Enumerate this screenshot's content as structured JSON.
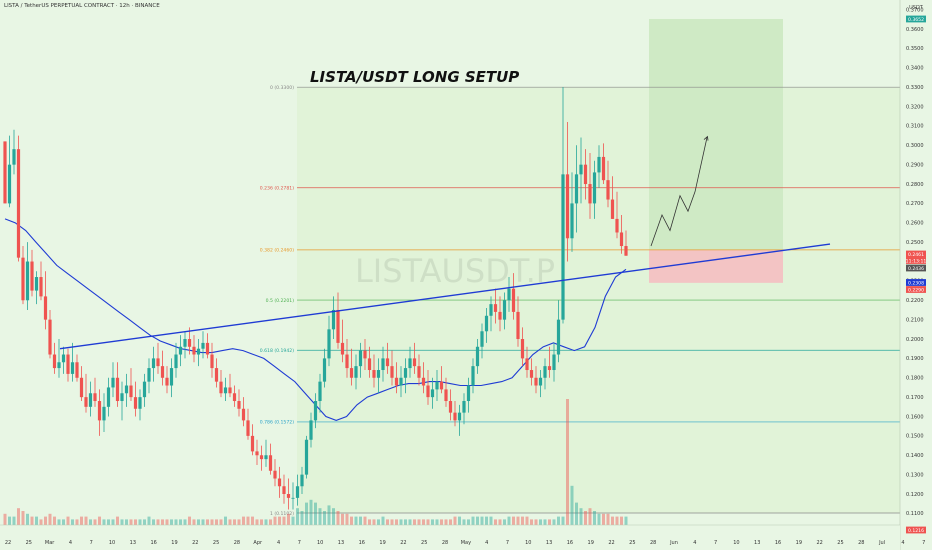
{
  "header": {
    "symbol_line": "LISTA / TetherUS PERPETUAL CONTRACT · 12h · BINANCE",
    "axis_unit": "USDT"
  },
  "annotations": {
    "title": "LISTA/USDT LONG SETUP",
    "watermark": "LISTAUSDT.P"
  },
  "colors": {
    "up": "#26a69a",
    "down": "#ef5350",
    "trendline": "#1f3bd4",
    "ma": "#1f3bd4",
    "fib_zone": "#dff3d4",
    "target_zone": "#cfeac5",
    "stop_zone": "#f3c4c4"
  },
  "chart_data": {
    "type": "candlestick",
    "timeframe": "12h",
    "ylim": [
      0.104,
      0.375
    ],
    "y_ticks": [
      "0.3700",
      "0.3600",
      "0.3500",
      "0.3400",
      "0.3300",
      "0.3200",
      "0.3100",
      "0.3000",
      "0.2900",
      "0.2800",
      "0.2700",
      "0.2600",
      "0.2500",
      "0.2400",
      "0.2300",
      "0.2200",
      "0.2100",
      "0.2000",
      "0.1900",
      "0.1800",
      "0.1700",
      "0.1600",
      "0.1500",
      "0.1400",
      "0.1300",
      "0.1200",
      "0.1100"
    ],
    "x_ticks": [
      "22",
      "25",
      "Mar",
      "4",
      "7",
      "10",
      "13",
      "16",
      "19",
      "22",
      "25",
      "28",
      "Apr",
      "4",
      "7",
      "10",
      "13",
      "16",
      "19",
      "22",
      "25",
      "28",
      "May",
      "4",
      "7",
      "10",
      "13",
      "16",
      "19",
      "22",
      "25",
      "28",
      "Jun",
      "4",
      "7",
      "10",
      "13",
      "16",
      "19",
      "22",
      "25",
      "28",
      "Jul",
      "4",
      "7"
    ],
    "price_labels": [
      {
        "value": "0.3652",
        "color": "#26a69a"
      },
      {
        "value": "0.2461",
        "color": "#ef5350"
      },
      {
        "value": "11:13:11",
        "color": "#ef5350"
      },
      {
        "value": "0.2436",
        "color": "#555555"
      },
      {
        "value": "0.2308",
        "color": "#1f3bd4"
      },
      {
        "value": "0.2290",
        "color": "#ef5350"
      },
      {
        "value": "0.1216",
        "color": "#ef5350"
      }
    ],
    "fib_levels": [
      {
        "label": "0 (0.3300)",
        "value": 0.33,
        "color": "#888888"
      },
      {
        "label": "0.236 (0.2781)",
        "value": 0.2781,
        "color": "#e0584f"
      },
      {
        "label": "0.382 (0.2460)",
        "value": 0.246,
        "color": "#e89a2c"
      },
      {
        "label": "0.5 (0.2201)",
        "value": 0.2201,
        "color": "#4caf50"
      },
      {
        "label": "0.618 (0.1942)",
        "value": 0.1942,
        "color": "#26a69a"
      },
      {
        "label": "0.786 (0.1572)",
        "value": 0.1572,
        "color": "#2aa3c9"
      },
      {
        "label": "1 (0.1102)",
        "value": 0.1102,
        "color": "#888888"
      }
    ],
    "position": {
      "entry": 0.2461,
      "target": 0.3652,
      "stop": 0.229
    },
    "candles": [
      [
        0.302,
        0.3,
        0.272
      ],
      [
        0.27,
        0.305,
        0.268
      ],
      [
        0.29,
        0.308,
        0.285
      ],
      [
        0.298,
        0.305,
        0.24
      ],
      [
        0.242,
        0.248,
        0.218
      ],
      [
        0.22,
        0.25,
        0.215
      ],
      [
        0.24,
        0.246,
        0.222
      ],
      [
        0.225,
        0.235,
        0.218
      ],
      [
        0.232,
        0.24,
        0.22
      ],
      [
        0.222,
        0.235,
        0.205
      ],
      [
        0.21,
        0.215,
        0.19
      ],
      [
        0.192,
        0.198,
        0.182
      ],
      [
        0.185,
        0.2,
        0.18
      ],
      [
        0.188,
        0.196,
        0.182
      ],
      [
        0.192,
        0.195,
        0.178
      ],
      [
        0.182,
        0.198,
        0.178
      ],
      [
        0.188,
        0.192,
        0.178
      ],
      [
        0.18,
        0.186,
        0.168
      ],
      [
        0.17,
        0.182,
        0.162
      ],
      [
        0.165,
        0.178,
        0.16
      ],
      [
        0.172,
        0.18,
        0.165
      ],
      [
        0.168,
        0.174,
        0.15
      ],
      [
        0.158,
        0.172,
        0.152
      ],
      [
        0.165,
        0.18,
        0.16
      ],
      [
        0.175,
        0.188,
        0.17
      ],
      [
        0.18,
        0.188,
        0.165
      ],
      [
        0.168,
        0.178,
        0.158
      ],
      [
        0.172,
        0.182,
        0.165
      ],
      [
        0.176,
        0.185,
        0.168
      ],
      [
        0.17,
        0.178,
        0.16
      ],
      [
        0.164,
        0.174,
        0.158
      ],
      [
        0.17,
        0.182,
        0.165
      ],
      [
        0.178,
        0.19,
        0.172
      ],
      [
        0.185,
        0.196,
        0.178
      ],
      [
        0.19,
        0.198,
        0.182
      ],
      [
        0.186,
        0.194,
        0.176
      ],
      [
        0.18,
        0.186,
        0.172
      ],
      [
        0.176,
        0.19,
        0.17
      ],
      [
        0.185,
        0.198,
        0.18
      ],
      [
        0.192,
        0.202,
        0.186
      ],
      [
        0.196,
        0.204,
        0.19
      ],
      [
        0.2,
        0.206,
        0.192
      ],
      [
        0.196,
        0.202,
        0.188
      ],
      [
        0.192,
        0.2,
        0.186
      ],
      [
        0.195,
        0.204,
        0.19
      ],
      [
        0.198,
        0.203,
        0.19
      ],
      [
        0.192,
        0.198,
        0.18
      ],
      [
        0.185,
        0.19,
        0.175
      ],
      [
        0.178,
        0.184,
        0.17
      ],
      [
        0.172,
        0.18,
        0.168
      ],
      [
        0.175,
        0.182,
        0.17
      ],
      [
        0.172,
        0.176,
        0.165
      ],
      [
        0.168,
        0.174,
        0.16
      ],
      [
        0.164,
        0.17,
        0.155
      ],
      [
        0.158,
        0.164,
        0.148
      ],
      [
        0.15,
        0.156,
        0.14
      ],
      [
        0.142,
        0.148,
        0.135
      ],
      [
        0.14,
        0.145,
        0.132
      ],
      [
        0.138,
        0.148,
        0.134
      ],
      [
        0.14,
        0.146,
        0.13
      ],
      [
        0.132,
        0.138,
        0.124
      ],
      [
        0.128,
        0.134,
        0.118
      ],
      [
        0.124,
        0.13,
        0.115
      ],
      [
        0.12,
        0.128,
        0.112
      ],
      [
        0.118,
        0.126,
        0.112
      ],
      [
        0.118,
        0.13,
        0.114
      ],
      [
        0.124,
        0.134,
        0.12
      ],
      [
        0.13,
        0.15,
        0.128
      ],
      [
        0.148,
        0.162,
        0.144
      ],
      [
        0.158,
        0.172,
        0.154
      ],
      [
        0.168,
        0.182,
        0.162
      ],
      [
        0.178,
        0.195,
        0.175
      ],
      [
        0.19,
        0.212,
        0.186
      ],
      [
        0.205,
        0.222,
        0.2
      ],
      [
        0.215,
        0.224,
        0.195
      ],
      [
        0.198,
        0.21,
        0.188
      ],
      [
        0.192,
        0.2,
        0.18
      ],
      [
        0.185,
        0.195,
        0.176
      ],
      [
        0.18,
        0.192,
        0.174
      ],
      [
        0.186,
        0.198,
        0.18
      ],
      [
        0.194,
        0.2,
        0.184
      ],
      [
        0.19,
        0.196,
        0.18
      ],
      [
        0.184,
        0.192,
        0.175
      ],
      [
        0.18,
        0.19,
        0.172
      ],
      [
        0.184,
        0.196,
        0.178
      ],
      [
        0.19,
        0.198,
        0.182
      ],
      [
        0.186,
        0.194,
        0.176
      ],
      [
        0.18,
        0.188,
        0.172
      ],
      [
        0.176,
        0.186,
        0.17
      ],
      [
        0.18,
        0.19,
        0.172
      ],
      [
        0.185,
        0.196,
        0.18
      ],
      [
        0.19,
        0.198,
        0.182
      ],
      [
        0.186,
        0.192,
        0.176
      ],
      [
        0.18,
        0.188,
        0.172
      ],
      [
        0.176,
        0.184,
        0.166
      ],
      [
        0.17,
        0.18,
        0.164
      ],
      [
        0.174,
        0.184,
        0.168
      ],
      [
        0.178,
        0.186,
        0.172
      ],
      [
        0.174,
        0.18,
        0.165
      ],
      [
        0.168,
        0.174,
        0.158
      ],
      [
        0.162,
        0.168,
        0.155
      ],
      [
        0.158,
        0.166,
        0.15
      ],
      [
        0.162,
        0.172,
        0.156
      ],
      [
        0.168,
        0.18,
        0.162
      ],
      [
        0.176,
        0.19,
        0.172
      ],
      [
        0.186,
        0.2,
        0.182
      ],
      [
        0.196,
        0.208,
        0.19
      ],
      [
        0.204,
        0.216,
        0.198
      ],
      [
        0.212,
        0.222,
        0.204
      ],
      [
        0.218,
        0.226,
        0.208
      ],
      [
        0.214,
        0.222,
        0.204
      ],
      [
        0.21,
        0.224,
        0.205
      ],
      [
        0.22,
        0.232,
        0.214
      ],
      [
        0.226,
        0.234,
        0.21
      ],
      [
        0.214,
        0.222,
        0.196
      ],
      [
        0.2,
        0.206,
        0.186
      ],
      [
        0.19,
        0.196,
        0.18
      ],
      [
        0.184,
        0.19,
        0.176
      ],
      [
        0.18,
        0.186,
        0.172
      ],
      [
        0.176,
        0.184,
        0.17
      ],
      [
        0.18,
        0.19,
        0.174
      ],
      [
        0.186,
        0.196,
        0.18
      ],
      [
        0.184,
        0.198,
        0.178
      ],
      [
        0.192,
        0.22,
        0.188
      ],
      [
        0.21,
        0.33,
        0.208
      ],
      [
        0.285,
        0.312,
        0.24
      ],
      [
        0.252,
        0.286,
        0.245
      ],
      [
        0.27,
        0.3,
        0.255
      ],
      [
        0.285,
        0.304,
        0.27
      ],
      [
        0.29,
        0.298,
        0.272
      ],
      [
        0.28,
        0.296,
        0.262
      ],
      [
        0.27,
        0.292,
        0.262
      ],
      [
        0.286,
        0.3,
        0.278
      ],
      [
        0.294,
        0.301,
        0.28
      ],
      [
        0.282,
        0.292,
        0.268
      ],
      [
        0.272,
        0.284,
        0.262
      ],
      [
        0.262,
        0.276,
        0.252
      ],
      [
        0.255,
        0.264,
        0.244
      ],
      [
        0.248,
        0.256,
        0.243
      ]
    ],
    "volumes": [
      4,
      3,
      3,
      6,
      5,
      4,
      3,
      3,
      2,
      3,
      4,
      3,
      2,
      2,
      3,
      2,
      2,
      3,
      3,
      2,
      2,
      3,
      2,
      2,
      2,
      3,
      2,
      2,
      2,
      2,
      2,
      2,
      3,
      2,
      2,
      2,
      2,
      2,
      2,
      2,
      2,
      3,
      2,
      2,
      2,
      2,
      2,
      2,
      2,
      3,
      2,
      2,
      2,
      3,
      3,
      3,
      2,
      2,
      2,
      2,
      3,
      3,
      3,
      4,
      3,
      6,
      5,
      8,
      9,
      8,
      6,
      5,
      7,
      6,
      5,
      4,
      4,
      3,
      3,
      3,
      3,
      2,
      2,
      2,
      3,
      2,
      2,
      2,
      2,
      2,
      2,
      2,
      2,
      2,
      2,
      2,
      2,
      2,
      2,
      2,
      3,
      3,
      2,
      2,
      3,
      3,
      3,
      3,
      3,
      2,
      2,
      2,
      3,
      3,
      3,
      3,
      3,
      2,
      2,
      2,
      2,
      2,
      2,
      3,
      3,
      45,
      14,
      8,
      6,
      5,
      6,
      5,
      4,
      4,
      4,
      3,
      3,
      3,
      3,
      3
    ],
    "trendline": {
      "start": [
        60,
        0.195
      ],
      "end": [
        830,
        0.249
      ]
    },
    "moving_average": [
      0.262,
      0.26,
      0.256,
      0.25,
      0.244,
      0.238,
      0.234,
      0.23,
      0.226,
      0.222,
      0.218,
      0.214,
      0.21,
      0.206,
      0.202,
      0.199,
      0.197,
      0.195,
      0.194,
      0.193,
      0.193,
      0.194,
      0.195,
      0.194,
      0.192,
      0.19,
      0.186,
      0.182,
      0.178,
      0.172,
      0.166,
      0.16,
      0.158,
      0.16,
      0.166,
      0.17,
      0.172,
      0.174,
      0.176,
      0.177,
      0.177,
      0.178,
      0.178,
      0.177,
      0.176,
      0.176,
      0.176,
      0.177,
      0.178,
      0.18,
      0.186,
      0.192,
      0.196,
      0.198,
      0.196,
      0.194,
      0.196,
      0.206,
      0.222,
      0.232,
      0.236
    ]
  }
}
